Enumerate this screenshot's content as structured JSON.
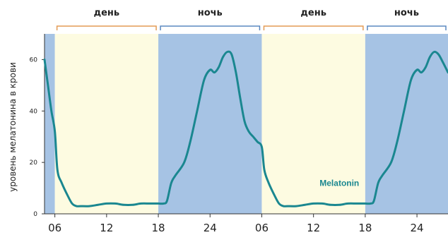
{
  "chart_data": {
    "type": "line",
    "ylabel": "уровень мелатонина в крови",
    "ylim": [
      0,
      70
    ],
    "y_ticks": [
      0,
      20,
      40,
      60
    ],
    "x_ticks": [
      {
        "t": 6,
        "label": "06"
      },
      {
        "t": 12,
        "label": "12"
      },
      {
        "t": 18,
        "label": "18"
      },
      {
        "t": 24,
        "label": "24"
      },
      {
        "t": 30,
        "label": "06"
      },
      {
        "t": 36,
        "label": "12"
      },
      {
        "t": 42,
        "label": "18"
      },
      {
        "t": 48,
        "label": "24"
      }
    ],
    "xlim": [
      4.8,
      51.6
    ],
    "periods": [
      {
        "label": "",
        "start": 4.8,
        "end": 6,
        "kind": "night"
      },
      {
        "label": "день",
        "start": 6,
        "end": 18,
        "kind": "day"
      },
      {
        "label": "ночь",
        "start": 18,
        "end": 30,
        "kind": "night"
      },
      {
        "label": "день",
        "start": 30,
        "end": 42,
        "kind": "day"
      },
      {
        "label": "ночь",
        "start": 42,
        "end": 51.6,
        "kind": "night"
      }
    ],
    "series": [
      {
        "name": "Melatonin",
        "x": [
          4.8,
          5.2,
          5.6,
          6.0,
          6.3,
          6.8,
          7.5,
          8.0,
          8.5,
          9.0,
          10.0,
          11.0,
          12.0,
          13.0,
          14.0,
          15.0,
          16.0,
          17.0,
          18.0,
          18.6,
          19.0,
          19.5,
          20.0,
          21.0,
          21.7,
          22.5,
          23.3,
          24.0,
          24.5,
          25.0,
          25.5,
          26.0,
          26.5,
          27.0,
          27.5,
          28.0,
          28.5,
          29.0,
          29.5,
          30.0,
          30.3,
          30.8,
          31.5,
          32.0,
          32.5,
          33.0,
          34.0,
          35.0,
          36.0,
          37.0,
          38.0,
          39.0,
          40.0,
          41.0,
          42.0,
          42.6,
          43.0,
          43.5,
          44.0,
          45.0,
          45.7,
          46.5,
          47.3,
          48.0,
          48.5,
          49.0,
          49.5,
          50.0,
          50.5,
          51.0,
          51.6
        ],
        "values": [
          60,
          50,
          40,
          32,
          17,
          12,
          7,
          4,
          3,
          3,
          3,
          3.5,
          4,
          4,
          3.5,
          3.5,
          4,
          4,
          4,
          4,
          5,
          12,
          15,
          20,
          28,
          40,
          52,
          56,
          55,
          57,
          61,
          63,
          62,
          55,
          45,
          36,
          32,
          30,
          28,
          26,
          17,
          12,
          7,
          4,
          3,
          3,
          3,
          3.5,
          4,
          4,
          3.5,
          3.5,
          4,
          4,
          4,
          4,
          5,
          12,
          15,
          20,
          28,
          40,
          52,
          56,
          55,
          57,
          61,
          63,
          62,
          59,
          55
        ]
      }
    ],
    "annotation": {
      "text": "Melatonin",
      "x": 39,
      "y": 7
    },
    "colors": {
      "night": "#a6c3e4",
      "day": "#fdfbe1",
      "line": "#1a8790",
      "day_bracket": "#e39b55",
      "night_bracket": "#5b88c0",
      "text": "#222222"
    }
  }
}
